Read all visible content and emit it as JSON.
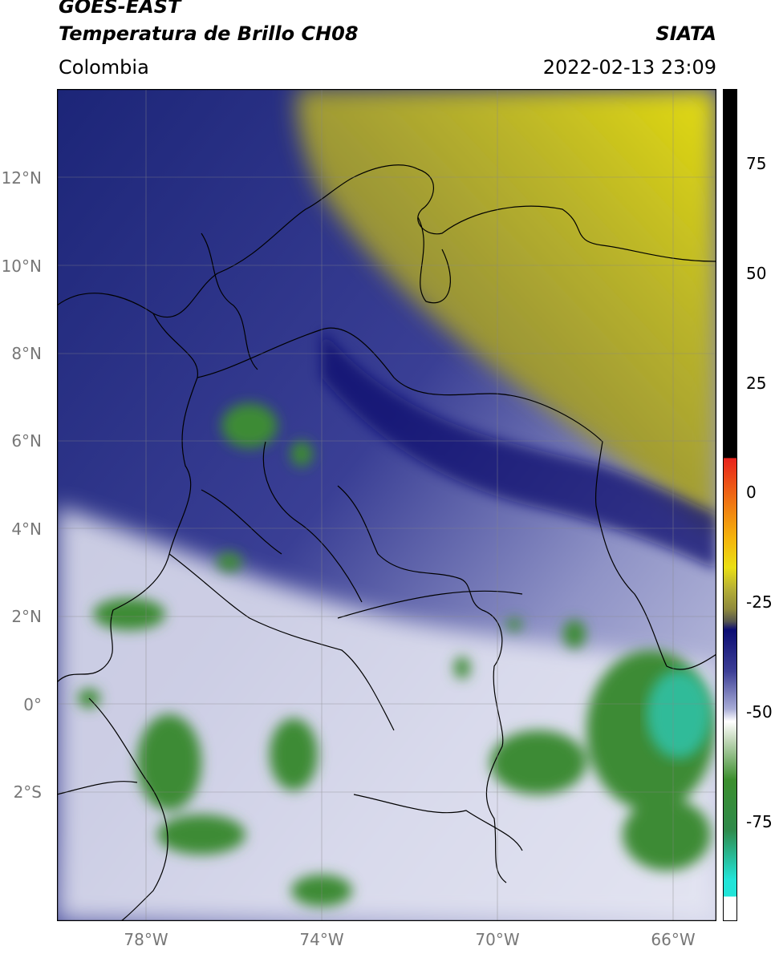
{
  "header": {
    "title_line1": "GOES-EAST",
    "title_line2": "Temperatura de Brillo CH08",
    "brand": "SIATA",
    "region": "Colombia",
    "timestamp": "2022-02-13 23:09"
  },
  "map": {
    "lon_range": [
      -80,
      -65
    ],
    "lat_range": [
      -4.5,
      14
    ],
    "lat_ticks": [
      "12°N",
      "10°N",
      "8°N",
      "6°N",
      "4°N",
      "2°N",
      "0°",
      "2°S"
    ],
    "lon_ticks": [
      "78°W",
      "74°W",
      "70°W",
      "66°W"
    ],
    "grid": true
  },
  "colorbar": {
    "range": [
      -100,
      90
    ],
    "tick_labels": [
      "75",
      "50",
      "25",
      "0",
      "-25",
      "-50",
      "-75"
    ],
    "colors": {
      "black": "#000000",
      "red": "#e8231c",
      "orange": "#f59a0c",
      "yellow": "#eadf14",
      "olive": "#8f8a3c",
      "navy": "#0c0d73",
      "lavender": "#a8acd6",
      "white": "#ffffff",
      "green": "#3c8f2e",
      "cyan": "#22e4d8"
    }
  }
}
